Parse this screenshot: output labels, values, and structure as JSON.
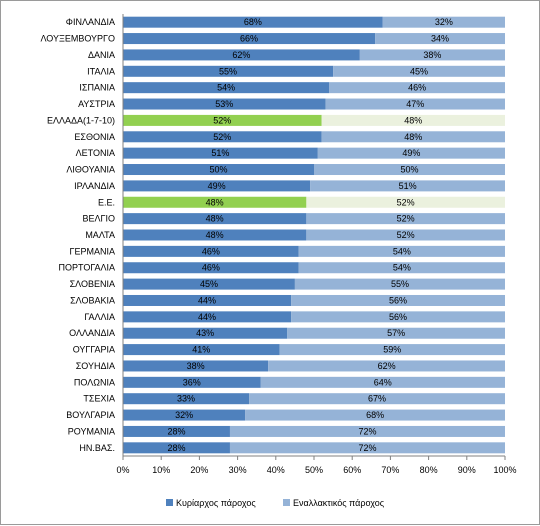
{
  "chart_data": {
    "type": "bar",
    "orientation": "horizontal",
    "stacked": "percent",
    "categories": [
      "ΦΙΝΛΑΝΔΙΑ",
      "ΛΟΥΞΕΜΒΟΥΡΓΟ",
      "ΔΑΝΙΑ",
      "ΙΤΑΛΙΑ",
      "ΙΣΠΑΝΙΑ",
      "ΑΥΣΤΡΙΑ",
      "ΕΛΛΑΔΑ(1-7-10)",
      "ΕΣΘΟΝΙΑ",
      "ΛΕΤΟΝΙΑ",
      "ΛΙΘΟΥΑΝΙΑ",
      "ΙΡΛΑΝΔΙΑ",
      "Ε.Ε.",
      "ΒΕΛΓΙΟ",
      "ΜΑΛΤΑ",
      "ΓΕΡΜΑΝΙΑ",
      "ΠΟΡΤΟΓΑΛΙΑ",
      "ΣΛΟΒΕΝΙΑ",
      "ΣΛΟΒΑΚΙΑ",
      "ΓΑΛΛΙΑ",
      "ΟΛΛΑΝΔΙΑ",
      "ΟΥΓΓΑΡΙΑ",
      "ΣΟΥΗΔΙΑ",
      "ΠΟΛΩΝΙΑ",
      "ΤΣΕΧΙΑ",
      "ΒΟΥΛΓΑΡΙΑ",
      "ΡΟΥΜΑΝΙΑ",
      "ΗΝ.ΒΑΣ."
    ],
    "series": [
      {
        "name": "Κυρίαρχος πάροχος",
        "color": "#4F81BD",
        "values": [
          68,
          66,
          62,
          55,
          54,
          53,
          52,
          52,
          51,
          50,
          49,
          48,
          48,
          48,
          46,
          46,
          45,
          44,
          44,
          43,
          41,
          38,
          36,
          33,
          32,
          28,
          28
        ]
      },
      {
        "name": "Εναλλακτικός πάροχος",
        "color": "#95B3D7",
        "values": [
          32,
          34,
          38,
          45,
          46,
          47,
          48,
          48,
          49,
          50,
          51,
          52,
          52,
          52,
          54,
          54,
          55,
          56,
          56,
          57,
          59,
          62,
          64,
          67,
          68,
          72,
          72
        ]
      }
    ],
    "highlight": {
      "categories": [
        "ΕΛΛΑΔΑ(1-7-10)",
        "Ε.Ε."
      ],
      "colors": [
        "#92D050",
        "#EBF1DE"
      ]
    },
    "value_format": "percent",
    "xlim": [
      0,
      100
    ],
    "xticks": [
      "0%",
      "10%",
      "20%",
      "30%",
      "40%",
      "50%",
      "60%",
      "70%",
      "80%",
      "90%",
      "100%"
    ],
    "grid": false,
    "legend": "bottom",
    "title": "",
    "xlabel": "",
    "ylabel": ""
  }
}
